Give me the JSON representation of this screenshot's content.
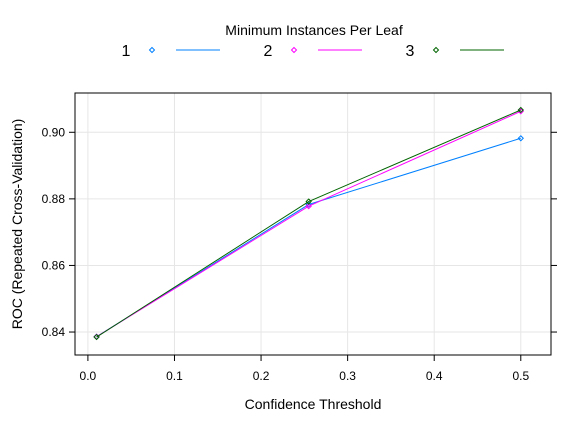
{
  "chart_data": {
    "type": "line",
    "legend_title": "Minimum Instances Per Leaf",
    "legend_position": "top",
    "xlabel": "Confidence Threshold",
    "ylabel": "ROC (Repeated Cross-Validation)",
    "xlim": [
      -0.0149,
      0.5349
    ],
    "ylim": [
      0.8331,
      0.9118
    ],
    "x_ticks": [
      0.0,
      0.1,
      0.2,
      0.3,
      0.4,
      0.5
    ],
    "x_tick_labels": [
      "0.0",
      "0.1",
      "0.2",
      "0.3",
      "0.4",
      "0.5"
    ],
    "y_ticks": [
      0.84,
      0.86,
      0.88,
      0.9
    ],
    "y_tick_labels": [
      "0.84",
      "0.86",
      "0.88",
      "0.90"
    ],
    "grid": true,
    "x": [
      0.01,
      0.255,
      0.5
    ],
    "series": [
      {
        "name": "1",
        "color": "#0080ff",
        "values": [
          0.8386,
          0.8783,
          0.8982
        ]
      },
      {
        "name": "2",
        "color": "#ff00ff",
        "values": [
          0.8386,
          0.8778,
          0.9063
        ]
      },
      {
        "name": "3",
        "color": "#006400",
        "values": [
          0.8385,
          0.8792,
          0.9067
        ]
      }
    ]
  }
}
